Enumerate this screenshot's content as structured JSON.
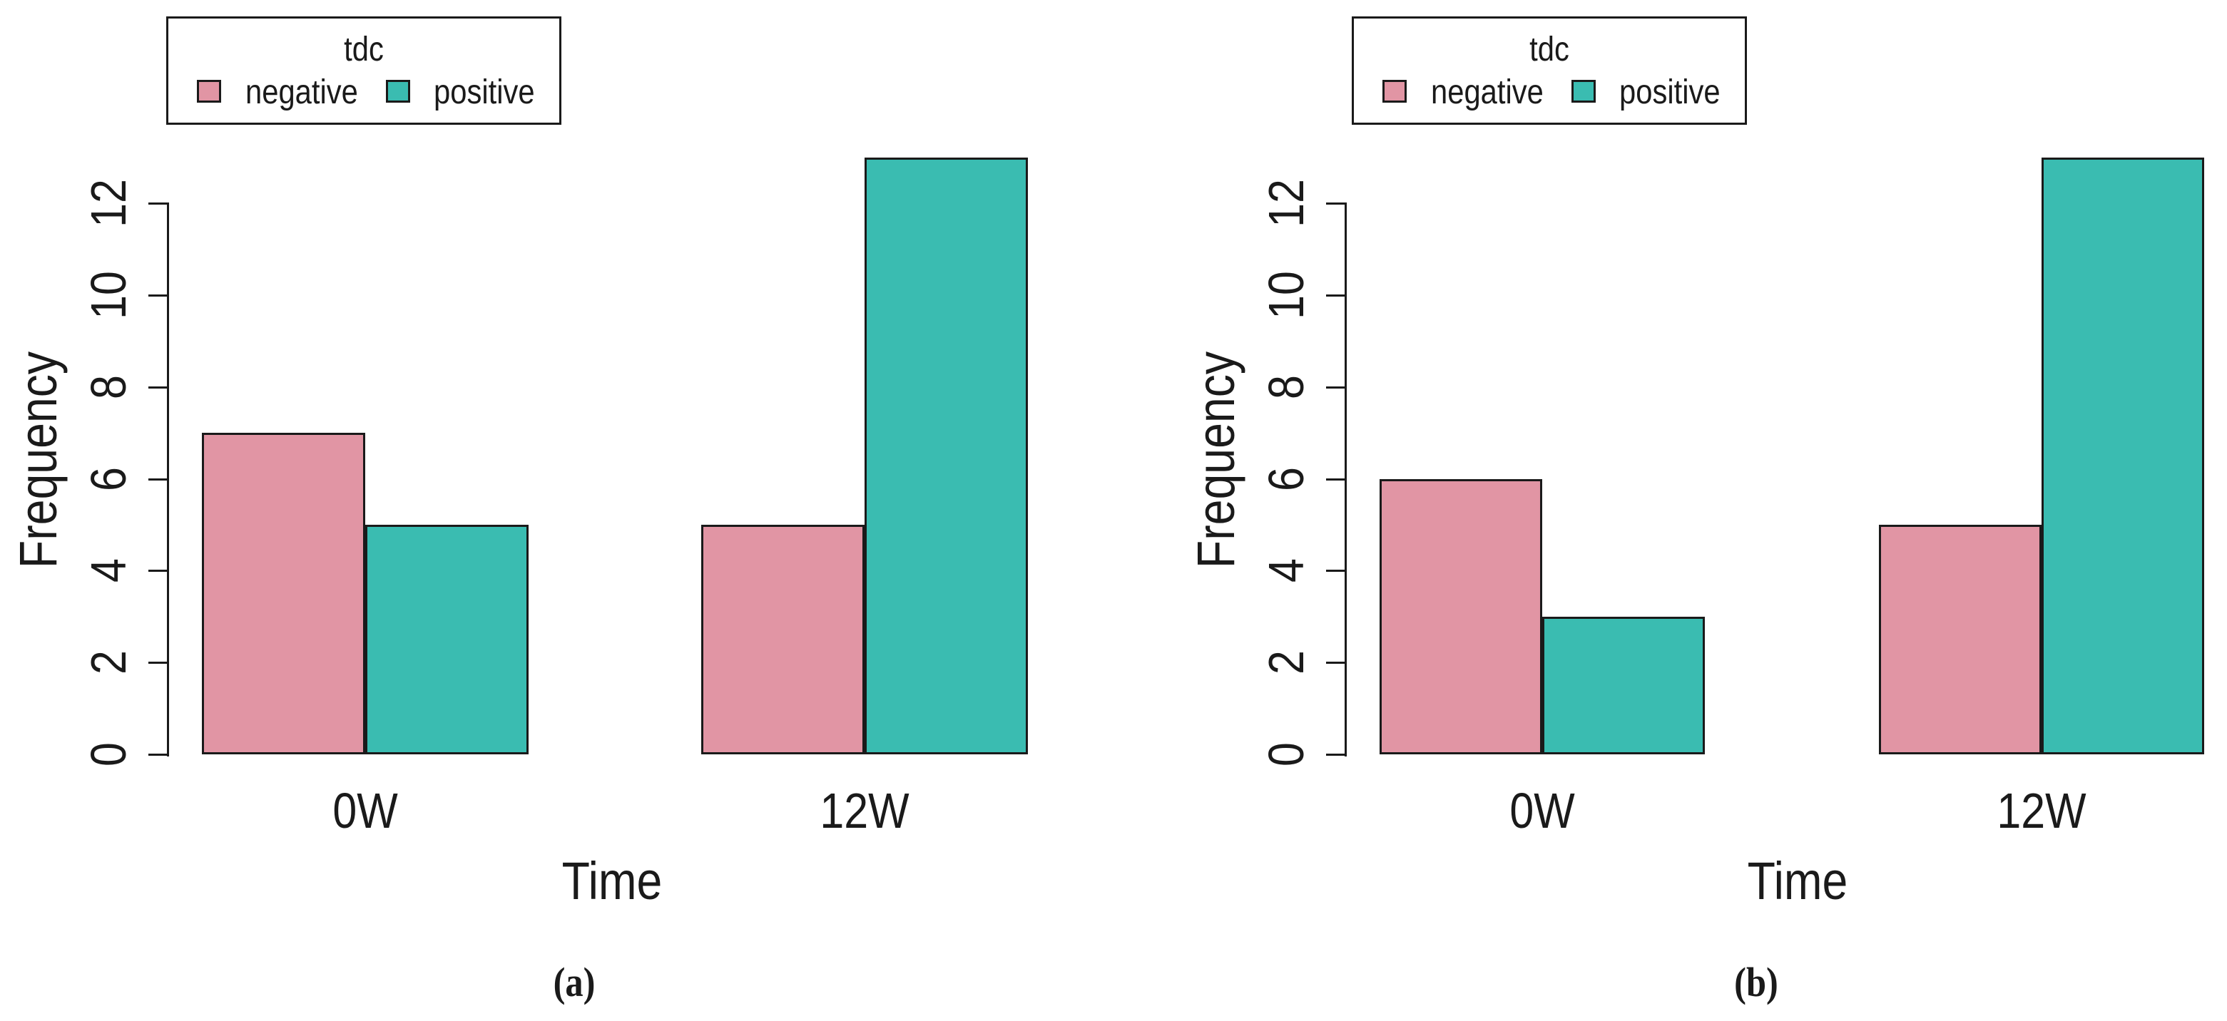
{
  "figure": {
    "background": "#FFFFFF",
    "ink": "#1A1A1A"
  },
  "chart_data": [
    {
      "id": "a",
      "type": "bar",
      "panel_label": "(a)",
      "legend": {
        "title": "tdc",
        "position": "top-left"
      },
      "categories": [
        "0W",
        "12W"
      ],
      "series": [
        {
          "name": "negative",
          "color": "#E195A4",
          "values": [
            7,
            5
          ]
        },
        {
          "name": "positive",
          "color": "#3ABCB1",
          "values": [
            5,
            13
          ]
        }
      ],
      "xlabel": "Time",
      "ylabel": "Frequency",
      "yticks": [
        0,
        2,
        4,
        6,
        8,
        10,
        12
      ],
      "ylim": [
        0,
        13
      ],
      "grid": false,
      "bar_edge_color": "#1A1A1A"
    },
    {
      "id": "b",
      "type": "bar",
      "panel_label": "(b)",
      "legend": {
        "title": "tdc",
        "position": "top-left"
      },
      "categories": [
        "0W",
        "12W"
      ],
      "series": [
        {
          "name": "negative",
          "color": "#E195A4",
          "values": [
            6,
            5
          ]
        },
        {
          "name": "positive",
          "color": "#3ABCB1",
          "values": [
            3,
            13
          ]
        }
      ],
      "xlabel": "Time",
      "ylabel": "Frequency",
      "yticks": [
        0,
        2,
        4,
        6,
        8,
        10,
        12
      ],
      "ylim": [
        0,
        13
      ],
      "grid": false,
      "bar_edge_color": "#1A1A1A"
    }
  ]
}
